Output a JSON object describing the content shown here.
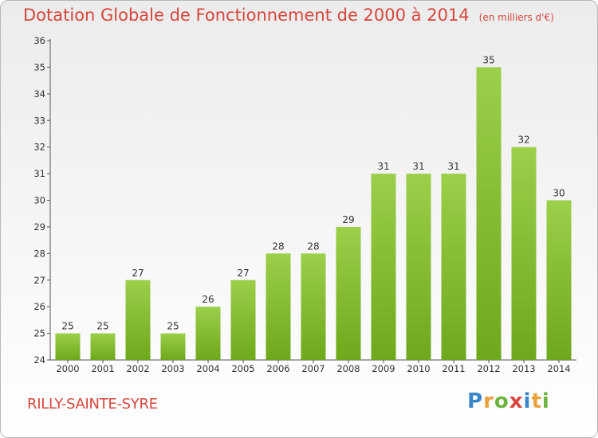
{
  "header": {
    "title": "Dotation Globale de Fonctionnement de 2000 à 2014",
    "unit": "(en milliers d'€)"
  },
  "footer": {
    "commune": "RILLY-SAINTE-SYRE",
    "logo": "Proxiti"
  },
  "colors": {
    "bar_light": "#9ccf4a",
    "bar_dark": "#6ea81c",
    "title": "#d6473c"
  },
  "chart_data": {
    "type": "bar",
    "title": "Dotation Globale de Fonctionnement de 2000 à 2014",
    "subtitle": "(en milliers d'€)",
    "xlabel": "",
    "ylabel": "",
    "categories": [
      "2000",
      "2001",
      "2002",
      "2003",
      "2004",
      "2005",
      "2006",
      "2007",
      "2008",
      "2009",
      "2010",
      "2011",
      "2012",
      "2013",
      "2014"
    ],
    "values": [
      25,
      25,
      27,
      25,
      26,
      27,
      28,
      28,
      29,
      31,
      31,
      31,
      35,
      32,
      30
    ],
    "ylim": [
      24,
      36
    ],
    "yticks": [
      24,
      25,
      26,
      27,
      28,
      29,
      30,
      31,
      32,
      33,
      34,
      35,
      36
    ],
    "grid": false,
    "data_labels": true
  }
}
